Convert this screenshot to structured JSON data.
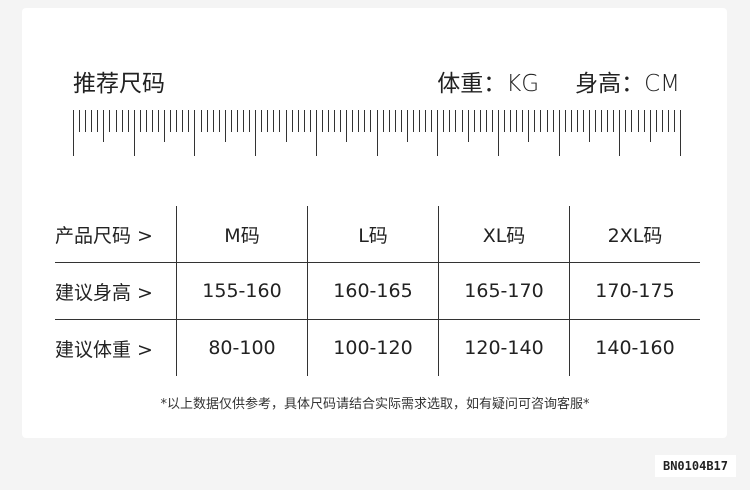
{
  "header": {
    "title": "推荐尺码",
    "weight_unit": "体重：KG",
    "height_unit": "身高：CM"
  },
  "table": {
    "rows": [
      {
        "label": "产品尺码 >",
        "cells": [
          "M码",
          "L码",
          "XL码",
          "2XL码"
        ]
      },
      {
        "label": "建议身高 >",
        "cells": [
          "155-160",
          "160-165",
          "165-170",
          "170-175"
        ]
      },
      {
        "label": "建议体重 >",
        "cells": [
          "80-100",
          "100-120",
          "120-140",
          "140-160"
        ]
      }
    ]
  },
  "note": "*以上数据仅供参考，具体尺码请结合实际需求选取，如有疑问可咨询客服*",
  "code": "BN0104B17"
}
